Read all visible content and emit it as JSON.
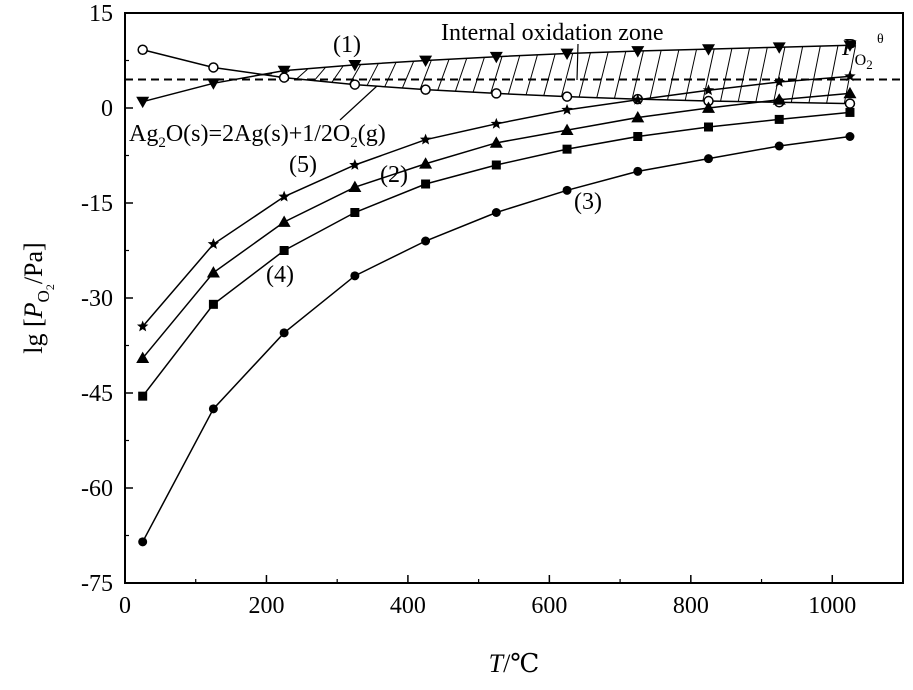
{
  "chart_data": {
    "type": "line",
    "xlabel_italic": "T",
    "xlabel_unit": "/℃",
    "ylabel": "lg [P_O2/Pa]",
    "ylabel_parts": {
      "prefix": "lg [",
      "P": "P",
      "sub": "O",
      "subsub": "2",
      "suffix": "/Pa]"
    },
    "xlim": [
      0,
      1100
    ],
    "ylim": [
      -75,
      15
    ],
    "x_ticks": [
      0,
      200,
      400,
      600,
      800,
      1000
    ],
    "x_tick_labels": [
      "0",
      "200",
      "400",
      "600",
      "800",
      "1000"
    ],
    "y_ticks": [
      15,
      0,
      -15,
      -30,
      -45,
      -60,
      -75
    ],
    "y_tick_labels": [
      "15",
      "0",
      "-15",
      "-30",
      "-45",
      "-60",
      "-75"
    ],
    "grid": false,
    "x": [
      25,
      125,
      225,
      325,
      425,
      525,
      625,
      725,
      825,
      925,
      1025
    ],
    "series": [
      {
        "name": "P_O2^θ",
        "marker": "triangle-down",
        "values": [
          1.0,
          3.9,
          5.9,
          6.8,
          7.5,
          8.1,
          8.6,
          9.0,
          9.3,
          9.6,
          9.9
        ]
      },
      {
        "name": "Ag2O(s)=2Ag(s)+1/2O2(g)",
        "marker": "circle-open",
        "values": [
          9.2,
          6.4,
          4.8,
          3.7,
          2.9,
          2.3,
          1.8,
          1.4,
          1.1,
          0.9,
          0.7
        ]
      },
      {
        "name": "(5)",
        "marker": "star",
        "values": [
          -34.5,
          -21.5,
          -14.0,
          -9.0,
          -5.0,
          -2.5,
          -0.3,
          1.3,
          2.8,
          4.1,
          5.0
        ]
      },
      {
        "name": "(2)",
        "marker": "triangle-up",
        "values": [
          -39.5,
          -26.0,
          -18.0,
          -12.5,
          -8.8,
          -5.5,
          -3.5,
          -1.5,
          0.0,
          1.3,
          2.3
        ]
      },
      {
        "name": "(4)",
        "marker": "square",
        "values": [
          -45.5,
          -31.0,
          -22.5,
          -16.5,
          -12.0,
          -9.0,
          -6.5,
          -4.5,
          -3.0,
          -1.8,
          -0.7
        ]
      },
      {
        "name": "(3)",
        "marker": "circle",
        "values": [
          -68.5,
          -47.5,
          -35.5,
          -26.5,
          -21.0,
          -16.5,
          -13.0,
          -10.0,
          -8.0,
          -6.0,
          -4.5
        ]
      }
    ],
    "reference_line": {
      "y": 4.5,
      "style": "dashed"
    },
    "hatched_region": {
      "between": [
        "P_O2^θ",
        "Ag2O(s)=2Ag(s)+1/2O2(g)"
      ],
      "from_x": 175,
      "to_x": 1025
    },
    "annotations": {
      "zone_label": "Internal oxidation zone",
      "reaction_label": "Ag2O(s)=2Ag(s)+1/2O2(g)",
      "p_symbol": "P",
      "p_sup": "θ",
      "p_sub": "O",
      "p_subsub": "2",
      "label_1": "(1)",
      "label_2": "(2)",
      "label_3": "(3)",
      "label_4": "(4)",
      "label_5": "(5)"
    }
  }
}
